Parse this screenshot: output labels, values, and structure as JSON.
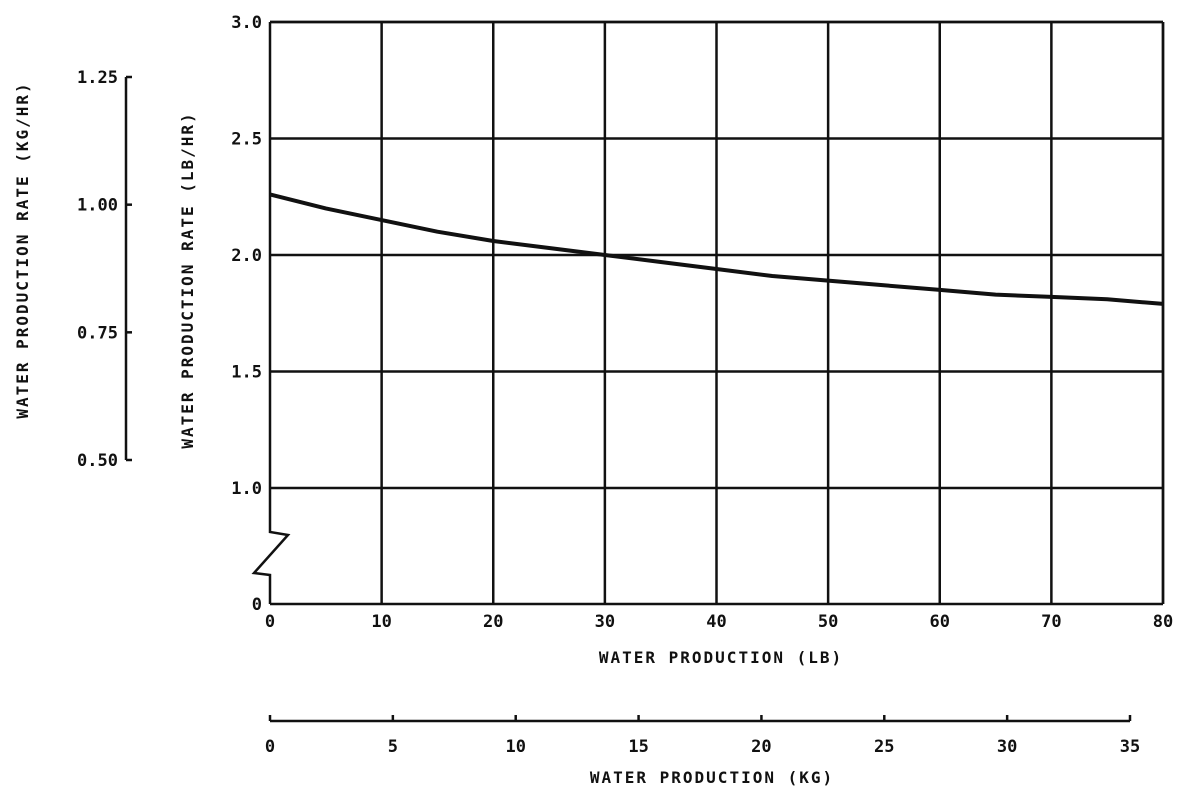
{
  "chart_data": {
    "type": "line",
    "title": "",
    "xlabel": "WATER PRODUCTION (LB)",
    "ylabel": "WATER PRODUCTION RATE (LB/HR)",
    "xlim": [
      0,
      80
    ],
    "ylim": [
      0,
      3.0
    ],
    "x_ticks": [
      "0",
      "10",
      "20",
      "30",
      "40",
      "50",
      "60",
      "70",
      "80"
    ],
    "y_ticks": [
      "0",
      "1.0",
      "1.5",
      "2.0",
      "2.5",
      "3.0"
    ],
    "y_break": "between 0 and 1.0",
    "grid": true,
    "series": [
      {
        "x": [
          0,
          5,
          10,
          15,
          20,
          25,
          30,
          35,
          40,
          45,
          50,
          55,
          60,
          65,
          70,
          75,
          80
        ],
        "y": [
          2.26,
          2.2,
          2.15,
          2.1,
          2.06,
          2.03,
          2.0,
          1.97,
          1.94,
          1.91,
          1.89,
          1.87,
          1.85,
          1.83,
          1.82,
          1.81,
          1.79
        ]
      }
    ],
    "secondary_x_axis": {
      "label": "WATER PRODUCTION (KG)",
      "range": [
        0,
        35
      ],
      "ticks": [
        "0",
        "5",
        "10",
        "15",
        "20",
        "25",
        "30",
        "35"
      ]
    },
    "secondary_y_axis": {
      "label": "WATER PRODUCTION RATE (KG/HR)",
      "range": [
        0.5,
        1.25
      ],
      "ticks": [
        "0.50",
        "0.75",
        "1.00",
        "1.25"
      ]
    }
  }
}
